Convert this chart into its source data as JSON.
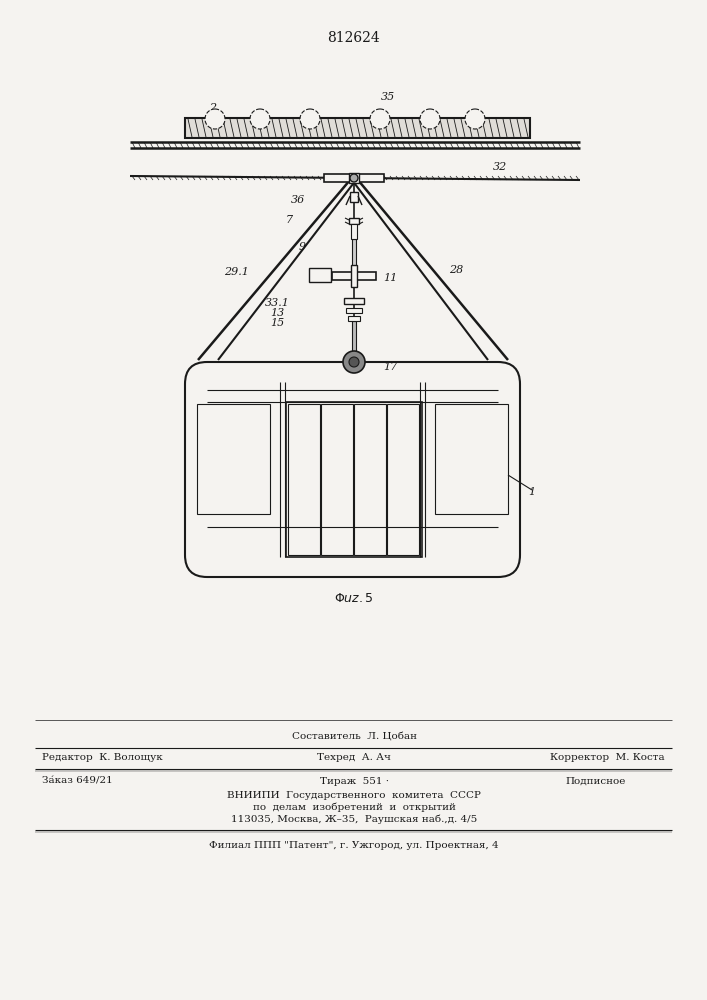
{
  "patent_number": "812624",
  "bg_color": "#f5f3f0",
  "line_color": "#1a1a1a",
  "footer_line1_center_top": "Составитель  Л. Цобан",
  "footer_line1_left": "Редактор  К. Волощук",
  "footer_line1_center": "Техред  А. Ач",
  "footer_line1_right": "Корректор  М. Коста",
  "footer_line2_left": "За́каз 649/21",
  "footer_line2_center": "Тираж  551 ·",
  "footer_line2_right": "Подписное",
  "footer_line3": "ВНИИПИ  Государственного  комитета  СССР",
  "footer_line4": "по  делам  изобретений  и  открытий",
  "footer_line5": "113035, Москва, Ж–35,  Раушская наб.,д. 4/5",
  "footer_last": "Филиал ППП \"Патент\", г. Ужгород, ул. Проектная, 4"
}
